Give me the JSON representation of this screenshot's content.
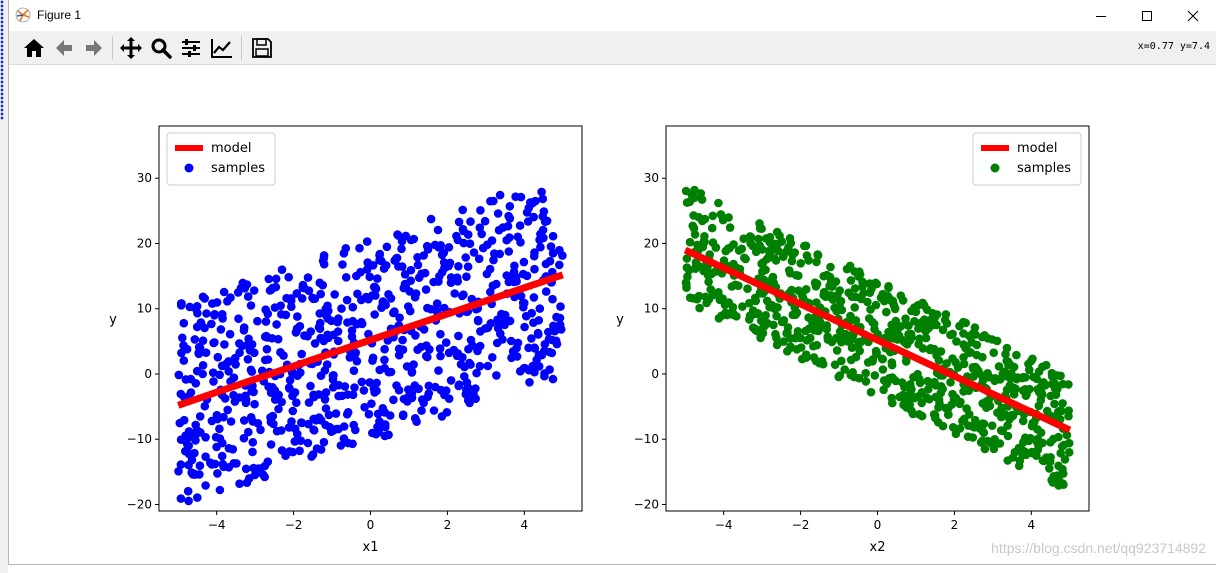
{
  "window": {
    "title": "Figure 1",
    "coords": "x=0.77 y=7.4",
    "watermark": "https://blog.csdn.net/qq923714892"
  },
  "toolbar": {
    "buttons": [
      {
        "name": "home-icon"
      },
      {
        "name": "back-arrow-icon"
      },
      {
        "name": "forward-arrow-icon"
      },
      {
        "name": "pan-move-icon"
      },
      {
        "name": "zoom-magnifier-icon"
      },
      {
        "name": "subplots-config-icon"
      },
      {
        "name": "edit-axes-icon"
      },
      {
        "name": "save-floppy-icon"
      }
    ]
  },
  "chart_data": [
    {
      "type": "scatter",
      "xlabel": "x1",
      "ylabel": "y",
      "xlim": [
        -5.5,
        5.5
      ],
      "ylim": [
        -21,
        38
      ],
      "xticks": [
        -4,
        -2,
        0,
        2,
        4
      ],
      "yticks": [
        -20,
        -10,
        0,
        10,
        20,
        30
      ],
      "legend": {
        "placement": "upper-left",
        "entries": [
          "model",
          "samples"
        ]
      },
      "series": [
        {
          "name": "model",
          "kind": "line",
          "color": "#ff0000",
          "x": [
            -5,
            5
          ],
          "y": [
            -4.8,
            15.2
          ]
        },
        {
          "name": "samples",
          "kind": "scatter",
          "color": "#0000ff",
          "n": 800,
          "x_range": [
            -5,
            5
          ],
          "slope": 2.0,
          "intercept": 5.2,
          "noise_halfwidth": 15.5,
          "seed": 7
        }
      ]
    },
    {
      "type": "scatter",
      "xlabel": "x2",
      "ylabel": "y",
      "xlim": [
        -5.5,
        5.5
      ],
      "ylim": [
        -21,
        38
      ],
      "xticks": [
        -4,
        -2,
        0,
        2,
        4
      ],
      "yticks": [
        -20,
        -10,
        0,
        10,
        20,
        30
      ],
      "legend": {
        "placement": "upper-right",
        "entries": [
          "model",
          "samples"
        ]
      },
      "series": [
        {
          "name": "model",
          "kind": "line",
          "color": "#ff0000",
          "x": [
            -5,
            5
          ],
          "y": [
            19.0,
            -8.6
          ]
        },
        {
          "name": "samples",
          "kind": "scatter",
          "color": "#008000",
          "n": 800,
          "x_range": [
            -5,
            5
          ],
          "slope": -2.9,
          "intercept": 5.5,
          "noise_halfwidth": 9.0,
          "seed": 13
        }
      ]
    }
  ]
}
